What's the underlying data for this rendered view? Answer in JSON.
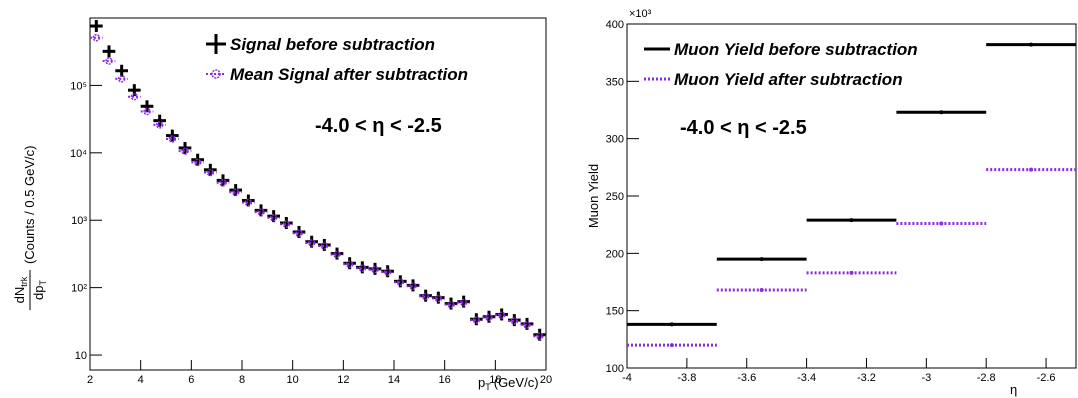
{
  "chart_data": [
    {
      "type": "scatter",
      "x_label": {
        "main": "p",
        "sub": "T",
        "unit": "(GeV/c)"
      },
      "y_label": {
        "numer": "dN",
        "numer_sub": "trk",
        "denom": "dp",
        "denom_sub": "T",
        "unit": "(Counts /  0.5 GeV/c)"
      },
      "annotation": "-4.0 <  η < -2.5",
      "log_y": true,
      "xlim": [
        2,
        20
      ],
      "xticks": [
        2,
        4,
        6,
        8,
        10,
        12,
        14,
        16,
        18,
        20
      ],
      "ylim": [
        6,
        1000000
      ],
      "yticks": [
        10,
        {
          "value": 100,
          "label": "10²"
        },
        {
          "value": 1000,
          "label": "10³"
        },
        {
          "value": 10000,
          "label": "10⁴"
        },
        {
          "value": 100000,
          "label": "10⁵"
        }
      ],
      "x": [
        2.25,
        2.75,
        3.25,
        3.75,
        4.25,
        4.75,
        5.25,
        5.75,
        6.25,
        6.75,
        7.25,
        7.75,
        8.25,
        8.75,
        9.25,
        9.75,
        10.25,
        10.75,
        11.25,
        11.75,
        12.25,
        12.75,
        13.25,
        13.75,
        14.25,
        14.75,
        15.25,
        15.75,
        16.25,
        16.75,
        17.25,
        17.75,
        18.25,
        18.75,
        19.25,
        19.75
      ],
      "series": [
        {
          "name": "Signal before subtraction",
          "color": "#000000",
          "values": [
            760000,
            320000,
            165000,
            85000,
            49000,
            30000,
            18000,
            11800,
            7900,
            5600,
            3900,
            2800,
            1960,
            1400,
            1150,
            910,
            670,
            480,
            430,
            320,
            230,
            200,
            190,
            175,
            124,
            108,
            76,
            71,
            58,
            62,
            34,
            37,
            40,
            33,
            29,
            20
          ]
        },
        {
          "name": "Mean Signal after subtraction",
          "color": "#8a2be2",
          "values": [
            510000,
            230000,
            125000,
            68000,
            41000,
            26000,
            16000,
            10600,
            7200,
            5100,
            3600,
            2600,
            1830,
            1320,
            1090,
            870,
            640,
            460,
            415,
            310,
            222,
            194,
            185,
            170,
            120,
            105,
            74,
            69,
            56,
            60,
            33,
            36,
            39,
            32,
            28,
            19
          ]
        }
      ]
    },
    {
      "type": "step",
      "x_label": "η",
      "y_label": "Muon Yield",
      "y_exponent": "×10³",
      "annotation": "-4.0 <  η < -2.5",
      "xlim": [
        -4,
        -2.5
      ],
      "xticks": [
        -4,
        -3.8,
        -3.6,
        -3.4,
        -3.2,
        -3,
        -2.8,
        -2.6
      ],
      "ylim": [
        100,
        400
      ],
      "yticks": [
        100,
        150,
        200,
        250,
        300,
        350,
        400
      ],
      "x": [
        -3.85,
        -3.55,
        -3.25,
        -2.95,
        -2.65
      ],
      "series": [
        {
          "name": "Muon Yield before subtraction",
          "color": "#000000",
          "values": [
            138,
            195,
            229,
            323,
            382
          ]
        },
        {
          "name": "Muon Yield after subtraction",
          "color": "#8a2be2",
          "values": [
            120,
            168,
            183,
            226,
            273
          ]
        }
      ]
    }
  ]
}
